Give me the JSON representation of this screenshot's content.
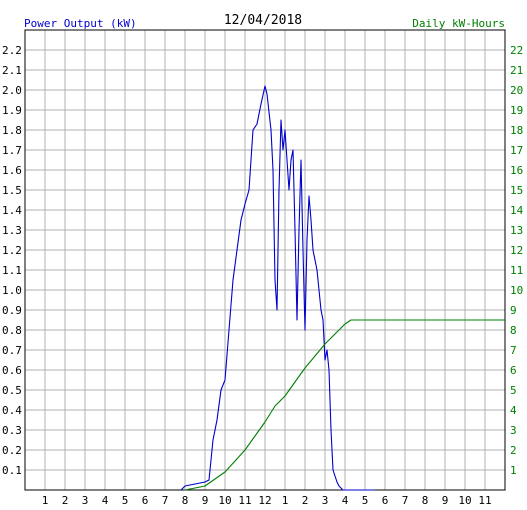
{
  "chart_data": {
    "type": "line",
    "title": "12/04/2018",
    "left_axis_label": "Power Output (kW)",
    "right_axis_label": "Daily kW-Hours",
    "x_ticks": [
      "1",
      "2",
      "3",
      "4",
      "5",
      "6",
      "7",
      "8",
      "9",
      "10",
      "11",
      "12",
      "1",
      "2",
      "3",
      "4",
      "5",
      "6",
      "7",
      "8",
      "9",
      "10",
      "11"
    ],
    "left_ticks": [
      "0.1",
      "0.2",
      "0.3",
      "0.4",
      "0.5",
      "0.6",
      "0.7",
      "0.8",
      "0.9",
      "1.0",
      "1.1",
      "1.2",
      "1.3",
      "1.4",
      "1.5",
      "1.6",
      "1.7",
      "1.8",
      "1.9",
      "2.0",
      "2.1",
      "2.2"
    ],
    "right_ticks": [
      "1",
      "2",
      "3",
      "4",
      "5",
      "6",
      "7",
      "8",
      "9",
      "10",
      "11",
      "12",
      "13",
      "14",
      "15",
      "16",
      "17",
      "18",
      "19",
      "20",
      "21",
      "22"
    ],
    "xlim": [
      0,
      24
    ],
    "ylim_left": [
      0,
      2.3
    ],
    "ylim_right": [
      0,
      23
    ],
    "grid": true,
    "series": [
      {
        "axis": "left",
        "color": "#0000cc",
        "x": [
          7.8,
          8.0,
          8.5,
          9.0,
          9.2,
          9.4,
          9.6,
          9.8,
          10.0,
          10.2,
          10.4,
          10.6,
          10.8,
          11.0,
          11.2,
          11.4,
          11.6,
          11.8,
          12.0,
          12.1,
          12.3,
          12.4,
          12.5,
          12.6,
          12.7,
          12.8,
          12.9,
          13.0,
          13.1,
          13.2,
          13.3,
          13.4,
          13.5,
          13.6,
          13.7,
          13.8,
          13.9,
          14.0,
          14.1,
          14.2,
          14.3,
          14.4,
          14.5,
          14.6,
          14.7,
          14.8,
          14.9,
          15.0,
          15.1,
          15.2,
          15.3,
          15.4,
          15.5,
          15.6,
          15.7,
          15.8,
          15.9,
          16.0,
          16.1,
          16.2,
          16.4,
          16.6,
          17.0,
          17.5
        ],
        "values": [
          0.0,
          0.02,
          0.03,
          0.04,
          0.05,
          0.25,
          0.35,
          0.5,
          0.55,
          0.8,
          1.05,
          1.2,
          1.35,
          1.43,
          1.5,
          1.8,
          1.83,
          1.93,
          2.02,
          1.98,
          1.8,
          1.6,
          1.05,
          0.9,
          1.5,
          1.85,
          1.7,
          1.8,
          1.65,
          1.5,
          1.65,
          1.7,
          1.3,
          0.85,
          1.3,
          1.65,
          1.2,
          0.8,
          1.25,
          1.47,
          1.35,
          1.2,
          1.15,
          1.1,
          1.0,
          0.9,
          0.85,
          0.65,
          0.7,
          0.6,
          0.3,
          0.1,
          0.07,
          0.04,
          0.02,
          0.01,
          0.0,
          0.0,
          0.0,
          0.0,
          0.0,
          0.0,
          0.0,
          0.0
        ]
      },
      {
        "axis": "right",
        "color": "#008000",
        "x": [
          8.0,
          9.0,
          10.0,
          11.0,
          11.5,
          12.0,
          12.5,
          13.0,
          13.5,
          14.0,
          14.5,
          15.0,
          15.5,
          16.0,
          16.3,
          16.5,
          17.0,
          20.0,
          24.0
        ],
        "values": [
          0.0,
          0.2,
          0.9,
          2.0,
          2.7,
          3.4,
          4.2,
          4.7,
          5.4,
          6.1,
          6.7,
          7.3,
          7.8,
          8.3,
          8.5,
          8.5,
          8.5,
          8.5,
          8.5
        ]
      }
    ]
  }
}
